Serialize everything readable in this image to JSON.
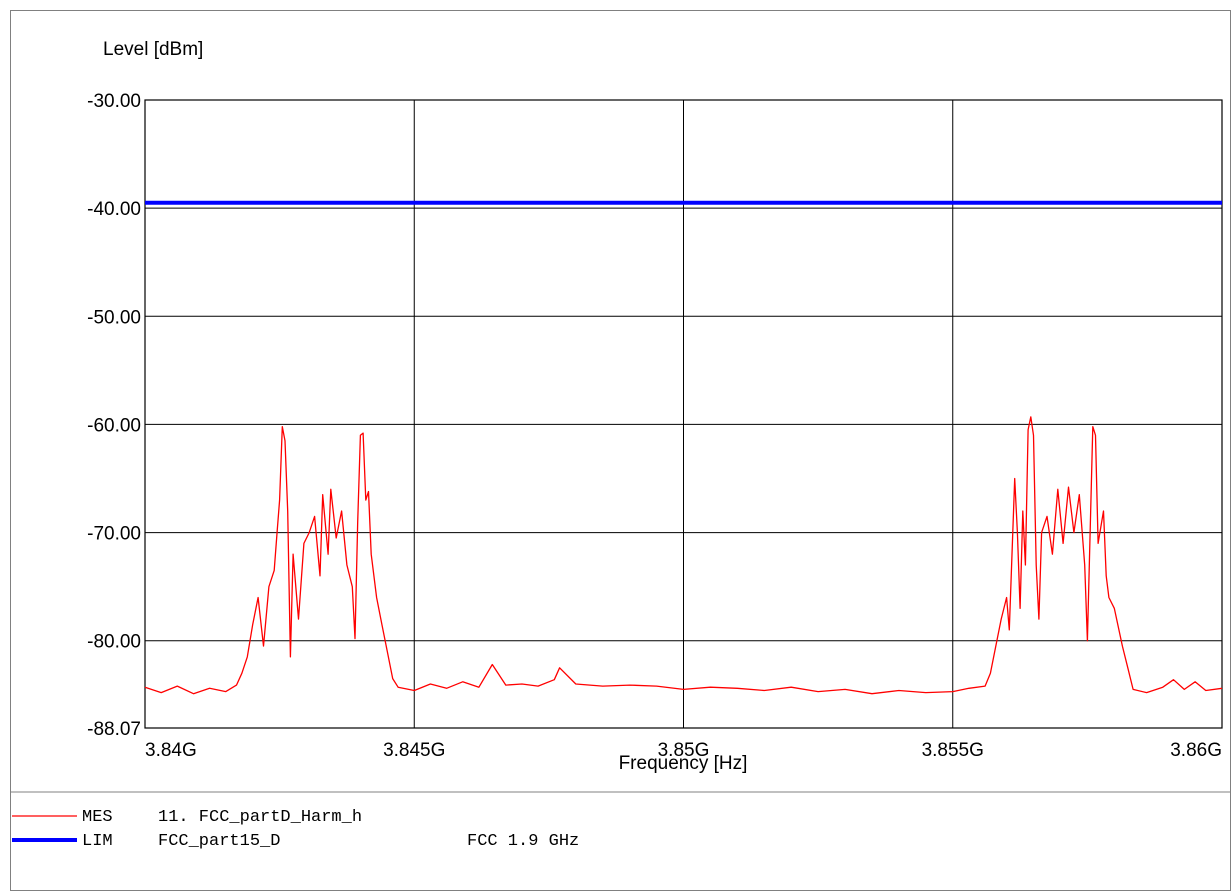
{
  "chart_data": {
    "type": "line",
    "ylabel": "Level [dBm]",
    "xlabel": "Frequency [Hz]",
    "ylim": [
      -88.07,
      -30.0
    ],
    "xlim": [
      3840000000,
      3860000000
    ],
    "y_ticks": [
      {
        "value": -30.0,
        "label": "-30.00"
      },
      {
        "value": -40.0,
        "label": "-40.00"
      },
      {
        "value": -50.0,
        "label": "-50.00"
      },
      {
        "value": -60.0,
        "label": "-60.00"
      },
      {
        "value": -70.0,
        "label": "-70.00"
      },
      {
        "value": -80.0,
        "label": "-80.00"
      },
      {
        "value": -88.07,
        "label": "-88.07"
      }
    ],
    "x_ticks": [
      {
        "value": 3840000000,
        "label": "3.84G"
      },
      {
        "value": 3845000000,
        "label": "3.845G"
      },
      {
        "value": 3850000000,
        "label": "3.85G"
      },
      {
        "value": 3855000000,
        "label": "3.855G"
      },
      {
        "value": 3860000000,
        "label": "3.86G"
      }
    ],
    "grid": true,
    "series": [
      {
        "name": "MES",
        "color": "#ff0000",
        "points": [
          [
            3840000000,
            -84.3
          ],
          [
            3840300000,
            -84.8
          ],
          [
            3840600000,
            -84.2
          ],
          [
            3840900000,
            -84.9
          ],
          [
            3841200000,
            -84.4
          ],
          [
            3841500000,
            -84.7
          ],
          [
            3841700000,
            -84.1
          ],
          [
            3841800000,
            -83.0
          ],
          [
            3841900000,
            -81.5
          ],
          [
            3842000000,
            -78.5
          ],
          [
            3842100000,
            -76.0
          ],
          [
            3842200000,
            -80.5
          ],
          [
            3842300000,
            -75.0
          ],
          [
            3842400000,
            -73.5
          ],
          [
            3842450000,
            -70.2
          ],
          [
            3842500000,
            -67.0
          ],
          [
            3842550000,
            -60.2
          ],
          [
            3842600000,
            -61.5
          ],
          [
            3842650000,
            -68.0
          ],
          [
            3842700000,
            -81.5
          ],
          [
            3842750000,
            -72.0
          ],
          [
            3842850000,
            -78.0
          ],
          [
            3842950000,
            -71.0
          ],
          [
            3843050000,
            -70.0
          ],
          [
            3843150000,
            -68.5
          ],
          [
            3843250000,
            -74.0
          ],
          [
            3843300000,
            -66.5
          ],
          [
            3843400000,
            -72.0
          ],
          [
            3843450000,
            -66.0
          ],
          [
            3843550000,
            -70.5
          ],
          [
            3843650000,
            -68.0
          ],
          [
            3843750000,
            -73.0
          ],
          [
            3843850000,
            -75.0
          ],
          [
            3843900000,
            -79.8
          ],
          [
            3843950000,
            -69.0
          ],
          [
            3844000000,
            -61.0
          ],
          [
            3844050000,
            -60.8
          ],
          [
            3844100000,
            -67.0
          ],
          [
            3844150000,
            -66.2
          ],
          [
            3844200000,
            -72.0
          ],
          [
            3844300000,
            -76.0
          ],
          [
            3844400000,
            -78.5
          ],
          [
            3844500000,
            -81.0
          ],
          [
            3844600000,
            -83.5
          ],
          [
            3844700000,
            -84.3
          ],
          [
            3845000000,
            -84.6
          ],
          [
            3845300000,
            -84.0
          ],
          [
            3845600000,
            -84.4
          ],
          [
            3845900000,
            -83.8
          ],
          [
            3846200000,
            -84.3
          ],
          [
            3846450000,
            -82.2
          ],
          [
            3846700000,
            -84.1
          ],
          [
            3847000000,
            -84.0
          ],
          [
            3847300000,
            -84.2
          ],
          [
            3847600000,
            -83.6
          ],
          [
            3847700000,
            -82.5
          ],
          [
            3848000000,
            -84.0
          ],
          [
            3848500000,
            -84.2
          ],
          [
            3849000000,
            -84.1
          ],
          [
            3849500000,
            -84.2
          ],
          [
            3850000000,
            -84.5
          ],
          [
            3850500000,
            -84.3
          ],
          [
            3851000000,
            -84.4
          ],
          [
            3851500000,
            -84.6
          ],
          [
            3852000000,
            -84.3
          ],
          [
            3852500000,
            -84.7
          ],
          [
            3853000000,
            -84.5
          ],
          [
            3853500000,
            -84.9
          ],
          [
            3854000000,
            -84.6
          ],
          [
            3854500000,
            -84.8
          ],
          [
            3855000000,
            -84.7
          ],
          [
            3855300000,
            -84.4
          ],
          [
            3855600000,
            -84.2
          ],
          [
            3855700000,
            -83.0
          ],
          [
            3855800000,
            -80.5
          ],
          [
            3855900000,
            -78.0
          ],
          [
            3856000000,
            -76.0
          ],
          [
            3856050000,
            -79.0
          ],
          [
            3856100000,
            -72.0
          ],
          [
            3856150000,
            -65.0
          ],
          [
            3856200000,
            -70.0
          ],
          [
            3856250000,
            -77.0
          ],
          [
            3856300000,
            -68.0
          ],
          [
            3856350000,
            -73.0
          ],
          [
            3856400000,
            -60.5
          ],
          [
            3856450000,
            -59.3
          ],
          [
            3856500000,
            -61.0
          ],
          [
            3856550000,
            -73.0
          ],
          [
            3856600000,
            -78.0
          ],
          [
            3856650000,
            -70.0
          ],
          [
            3856750000,
            -68.5
          ],
          [
            3856850000,
            -72.0
          ],
          [
            3856950000,
            -66.0
          ],
          [
            3857050000,
            -71.0
          ],
          [
            3857150000,
            -65.8
          ],
          [
            3857250000,
            -70.0
          ],
          [
            3857350000,
            -66.5
          ],
          [
            3857450000,
            -73.0
          ],
          [
            3857500000,
            -80.0
          ],
          [
            3857600000,
            -60.2
          ],
          [
            3857650000,
            -61.0
          ],
          [
            3857700000,
            -71.0
          ],
          [
            3857800000,
            -68.0
          ],
          [
            3857850000,
            -74.0
          ],
          [
            3857900000,
            -76.0
          ],
          [
            3858000000,
            -77.0
          ],
          [
            3858150000,
            -80.5
          ],
          [
            3858250000,
            -82.5
          ],
          [
            3858350000,
            -84.5
          ],
          [
            3858600000,
            -84.8
          ],
          [
            3858900000,
            -84.3
          ],
          [
            3859100000,
            -83.6
          ],
          [
            3859300000,
            -84.5
          ],
          [
            3859500000,
            -83.8
          ],
          [
            3859700000,
            -84.6
          ],
          [
            3860000000,
            -84.4
          ]
        ]
      },
      {
        "name": "LIM",
        "color": "#0000ff",
        "points": [
          [
            3840000000,
            -39.5
          ],
          [
            3860000000,
            -39.5
          ]
        ]
      }
    ]
  },
  "legend": {
    "items": [
      {
        "tag": "MES",
        "id": "11. FCC_partD_Harm_h",
        "desc": ""
      },
      {
        "tag": "LIM",
        "id": "FCC_part15_D",
        "desc": "FCC 1.9 GHz"
      }
    ]
  }
}
